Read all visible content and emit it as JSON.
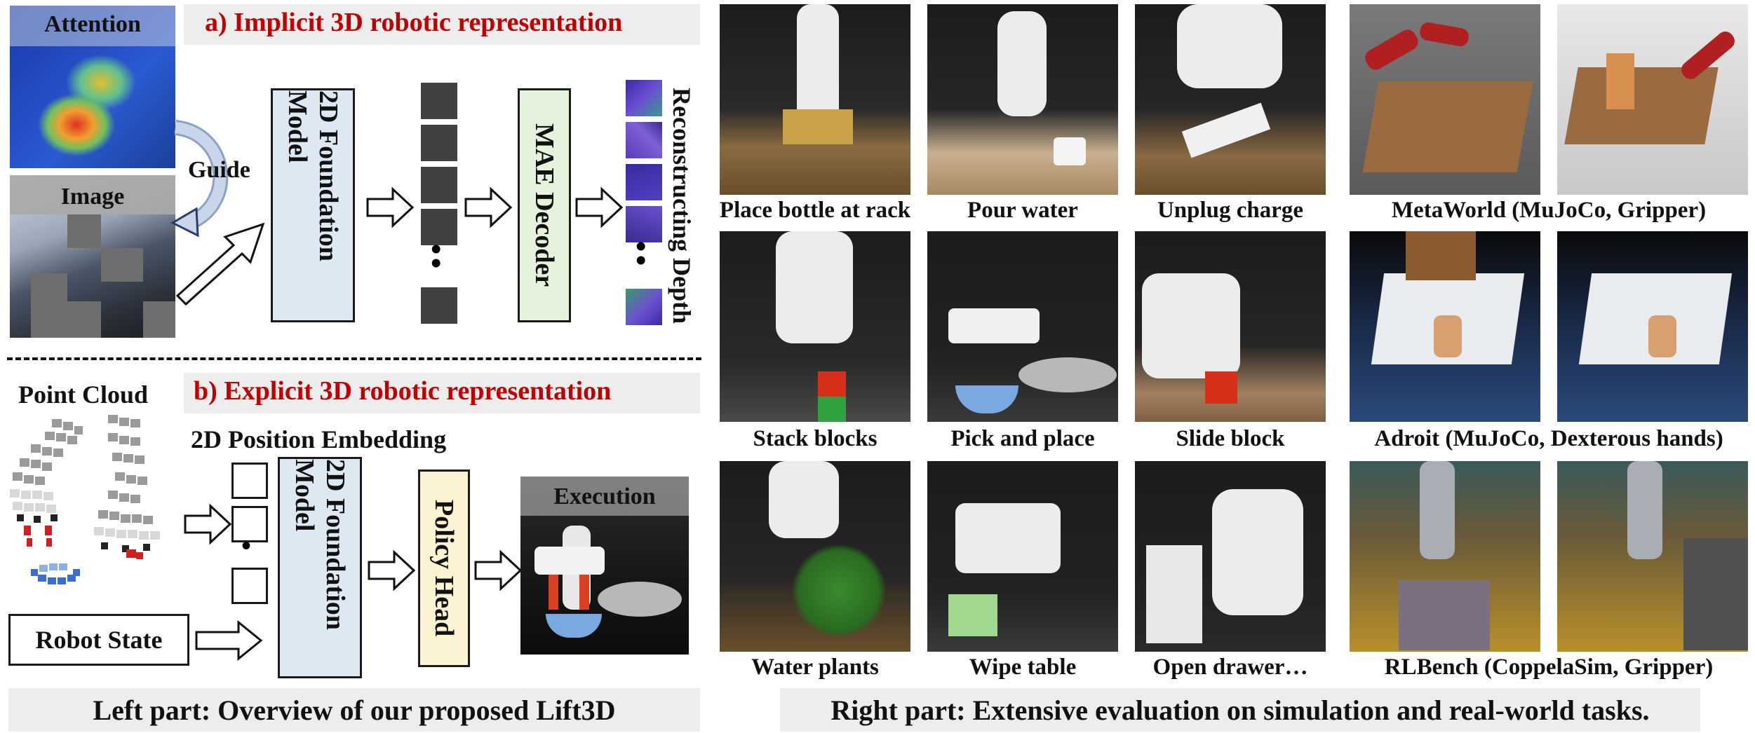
{
  "left": {
    "section_a_title": "a) Implicit 3D robotic representation",
    "section_b_title": "b) Explicit 3D robotic representation",
    "attention_label": "Attention",
    "image_label": "Image",
    "guide_label": "Guide",
    "foundation_model_a": "2D Foundation Model",
    "mae_decoder": "MAE Decoder",
    "reconstructing_depth": "Reconstructing Depth",
    "point_cloud_label": "Point Cloud",
    "position_embedding_label": "2D Position Embedding",
    "foundation_model_b": "2D Foundation Model",
    "policy_head": "Policy Head",
    "execution_label": "Execution",
    "robot_state": "Robot State",
    "caption": "Left part: Overview of our proposed Lift3D",
    "token_ellipsis": "•",
    "depth_ellipsis": "•"
  },
  "right": {
    "real_tasks": [
      [
        "Place bottle at rack",
        "Pour water",
        "Unplug charge"
      ],
      [
        "Stack blocks",
        "Pick and place",
        "Slide block"
      ],
      [
        "Water plants",
        "Wipe table",
        "Open drawer…"
      ]
    ],
    "sim_benchmarks": [
      "MetaWorld (MuJoCo, Gripper)",
      "Adroit (MuJoCo, Dexterous hands)",
      "RLBench (CoppelaSim, Gripper)"
    ],
    "caption": "Right part: Extensive evaluation on simulation and real-world tasks."
  },
  "colors": {
    "accent_red": "#c00000",
    "box_blue": "#dde8f3",
    "box_green": "#e6f3dc",
    "box_yellow": "#fcf3d2",
    "caption_grey": "#ededed"
  }
}
